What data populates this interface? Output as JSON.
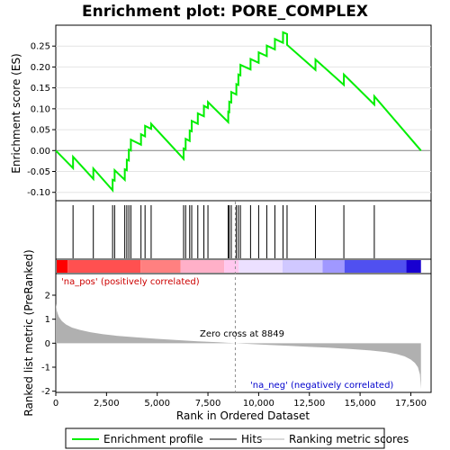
{
  "chart_data": {
    "type": "line",
    "title": "Enrichment plot: PORE_COMPLEX",
    "xlabel": "Rank in Ordered Dataset",
    "ylabel_top": "Enrichment score (ES)",
    "ylabel_bottom": "Ranked list metric (PreRanked)",
    "xlim": [
      0,
      18500
    ],
    "x_ticks": [
      0,
      2500,
      5000,
      7500,
      10000,
      12500,
      15000,
      17500
    ],
    "x_tick_labels": [
      "0",
      "2,500",
      "5,000",
      "7,500",
      "10,000",
      "12,500",
      "15,000",
      "17,500"
    ],
    "es_ylim": [
      -0.12,
      0.3
    ],
    "es_ticks": [
      -0.1,
      -0.05,
      0.0,
      0.05,
      0.1,
      0.15,
      0.2,
      0.25
    ],
    "es_tick_labels": [
      "-0.10",
      "-0.05",
      "0.00",
      "0.05",
      "0.10",
      "0.15",
      "0.20",
      "0.25"
    ],
    "metric_ylim": [
      -2.05,
      2.9
    ],
    "metric_ticks": [
      -2,
      -1,
      0,
      1,
      2
    ],
    "metric_tick_labels": [
      "-2",
      "-1",
      "0",
      "1",
      "2"
    ],
    "hits": [
      850,
      1850,
      2800,
      2900,
      3400,
      3500,
      3600,
      3700,
      4200,
      4400,
      4700,
      6300,
      6400,
      6600,
      6700,
      7000,
      7300,
      7500,
      8500,
      8550,
      8650,
      8900,
      9000,
      9100,
      9600,
      10000,
      10400,
      10800,
      11200,
      11400,
      12800,
      14200,
      15700
    ],
    "es_profile": {
      "x": [
        0,
        850,
        851,
        1850,
        1851,
        2800,
        2801,
        2900,
        2901,
        3400,
        3401,
        3500,
        3501,
        3600,
        3601,
        3700,
        3701,
        4200,
        4201,
        4400,
        4401,
        4700,
        4701,
        6300,
        6301,
        6400,
        6401,
        6600,
        6601,
        6700,
        6701,
        7000,
        7001,
        7300,
        7301,
        7500,
        7501,
        8500,
        8501,
        8550,
        8551,
        8650,
        8651,
        8900,
        8901,
        9000,
        9001,
        9100,
        9101,
        9600,
        9601,
        10000,
        10001,
        10400,
        10401,
        10800,
        10801,
        11200,
        11201,
        11400,
        11401,
        12800,
        12801,
        14200,
        14201,
        15700,
        15701,
        18000
      ],
      "y": [
        0.0,
        -0.042,
        -0.015,
        -0.068,
        -0.043,
        -0.095,
        -0.07,
        -0.072,
        -0.047,
        -0.07,
        -0.045,
        -0.047,
        -0.022,
        -0.024,
        0.002,
        0.0,
        0.026,
        0.014,
        0.039,
        0.034,
        0.059,
        0.052,
        0.064,
        -0.02,
        0.005,
        0.003,
        0.028,
        0.023,
        0.048,
        0.046,
        0.071,
        0.064,
        0.089,
        0.082,
        0.107,
        0.102,
        0.116,
        0.068,
        0.093,
        0.092,
        0.117,
        0.115,
        0.14,
        0.134,
        0.159,
        0.157,
        0.182,
        0.18,
        0.205,
        0.194,
        0.219,
        0.21,
        0.235,
        0.226,
        0.251,
        0.242,
        0.267,
        0.258,
        0.283,
        0.279,
        0.253,
        0.193,
        0.218,
        0.157,
        0.182,
        0.11,
        0.13,
        0.0
      ]
    },
    "metric_profile": {
      "x": [
        0,
        50,
        150,
        300,
        500,
        800,
        1200,
        1700,
        2300,
        3000,
        4000,
        5000,
        6000,
        7000,
        8000,
        8849,
        9500,
        10500,
        11500,
        12500,
        13500,
        14500,
        15500,
        16300,
        16800,
        17200,
        17500,
        17700,
        17850,
        17950,
        18000
      ],
      "y": [
        1.65,
        1.35,
        1.1,
        0.92,
        0.78,
        0.65,
        0.55,
        0.46,
        0.38,
        0.31,
        0.24,
        0.18,
        0.13,
        0.08,
        0.04,
        0.0,
        -0.03,
        -0.07,
        -0.11,
        -0.15,
        -0.19,
        -0.24,
        -0.3,
        -0.37,
        -0.45,
        -0.55,
        -0.68,
        -0.82,
        -1.0,
        -1.3,
        -1.9
      ]
    },
    "zero_cross_label": "Zero cross at 8849",
    "zero_cross_x": 8849,
    "pos_label": "'na_pos' (positively correlated)",
    "neg_label": "'na_neg' (negatively correlated)",
    "legend": [
      "Enrichment profile",
      "Hits",
      "Ranking metric scores"
    ],
    "colors": {
      "enrichment": "#00ee00",
      "hits": "#000000",
      "metric_fill": "#b0b0b0",
      "pos_text": "#cc0000",
      "neg_text": "#0000cc",
      "zero_line": "#909090"
    },
    "heat_colors": [
      "#ff0000",
      "#ff5050",
      "#ff8080",
      "#ffb0c8",
      "#ffc8ee",
      "#ece0ff",
      "#d0c8ff",
      "#a098ff",
      "#5050f0",
      "#1800d0"
    ],
    "heat_fractions": [
      0.03,
      0.23,
      0.34,
      0.46,
      0.5,
      0.62,
      0.73,
      0.79,
      0.96,
      1.0
    ]
  }
}
